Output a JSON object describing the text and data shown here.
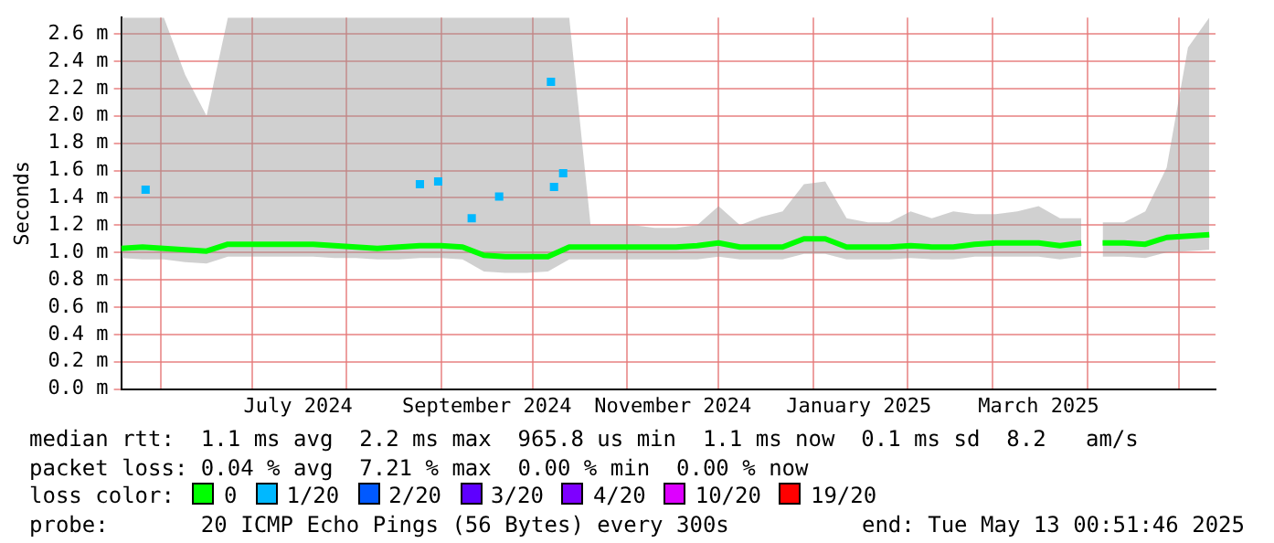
{
  "chart_data": {
    "type": "line",
    "ylabel": "Seconds",
    "legend_title": "loss color:",
    "legend": "bottom",
    "grid": true,
    "marker": "none",
    "line_style": "solid",
    "x": [
      "2024-05-19",
      "2024-05-26",
      "2024-06-02",
      "2024-06-09",
      "2024-06-16",
      "2024-06-23",
      "2024-06-30",
      "2024-07-07",
      "2024-07-14",
      "2024-07-21",
      "2024-07-28",
      "2024-08-04",
      "2024-08-11",
      "2024-08-18",
      "2024-08-25",
      "2024-09-01",
      "2024-09-08",
      "2024-09-15",
      "2024-09-22",
      "2024-09-29",
      "2024-10-06",
      "2024-10-13",
      "2024-10-20",
      "2024-10-27",
      "2024-11-03",
      "2024-11-10",
      "2024-11-17",
      "2024-11-24",
      "2024-12-01",
      "2024-12-08",
      "2024-12-15",
      "2024-12-22",
      "2024-12-29",
      "2025-01-05",
      "2025-01-12",
      "2025-01-19",
      "2025-01-26",
      "2025-02-02",
      "2025-02-09",
      "2025-02-16",
      "2025-02-23",
      "2025-03-02",
      "2025-03-09",
      "2025-03-16",
      "2025-03-23",
      "2025-03-30",
      "2025-04-03",
      "2025-04-06",
      "2025-04-13",
      "2025-04-20",
      "2025-04-27",
      "2025-05-04",
      "2025-05-11"
    ],
    "xlim": [
      "2024-05-19",
      "2025-05-13T00:51"
    ],
    "xticks": [
      {
        "value": "2024-06-01",
        "label": null
      },
      {
        "value": "2024-07-01",
        "label": null
      },
      {
        "value": "2024-07-16",
        "label": "July 2024"
      },
      {
        "value": "2024-08-01",
        "label": null
      },
      {
        "value": "2024-09-01",
        "label": null
      },
      {
        "value": "2024-09-16",
        "label": "September 2024"
      },
      {
        "value": "2024-10-01",
        "label": null
      },
      {
        "value": "2024-11-01",
        "label": null
      },
      {
        "value": "2024-11-16",
        "label": "November 2024"
      },
      {
        "value": "2024-12-01",
        "label": null
      },
      {
        "value": "2025-01-01",
        "label": null
      },
      {
        "value": "2025-01-16",
        "label": "January 2025"
      },
      {
        "value": "2025-02-01",
        "label": null
      },
      {
        "value": "2025-03-01",
        "label": null
      },
      {
        "value": "2025-03-16",
        "label": "March 2025"
      },
      {
        "value": "2025-04-01",
        "label": null
      },
      {
        "value": "2025-05-01",
        "label": null
      }
    ],
    "ylim": [
      0,
      2.72
    ],
    "yticks": [
      {
        "value": 0,
        "label": "0.0 m"
      },
      {
        "value": 0.2,
        "label": "0.2 m"
      },
      {
        "value": 0.4,
        "label": "0.4 m"
      },
      {
        "value": 0.6,
        "label": "0.6 m"
      },
      {
        "value": 0.8,
        "label": "0.8 m"
      },
      {
        "value": 1,
        "label": "1.0 m"
      },
      {
        "value": 1.2,
        "label": "1.2 m"
      },
      {
        "value": 1.4,
        "label": "1.4 m"
      },
      {
        "value": 1.6,
        "label": "1.6 m"
      },
      {
        "value": 1.8,
        "label": "1.8 m"
      },
      {
        "value": 2,
        "label": "2.0 m"
      },
      {
        "value": 2.2,
        "label": "2.2 m"
      },
      {
        "value": 2.4,
        "label": "2.4 m"
      },
      {
        "value": 2.6,
        "label": "2.6 m"
      }
    ],
    "series": [
      {
        "name": "0",
        "color": "#00ff00",
        "values": [
          1.03,
          1.04,
          1.03,
          1.02,
          1.01,
          1.06,
          1.06,
          1.06,
          1.06,
          1.06,
          1.05,
          1.04,
          1.03,
          1.04,
          1.05,
          1.05,
          1.04,
          0.98,
          0.97,
          0.97,
          0.97,
          1.04,
          1.04,
          1.04,
          1.04,
          1.04,
          1.04,
          1.05,
          1.07,
          1.04,
          1.04,
          1.04,
          1.1,
          1.1,
          1.04,
          1.04,
          1.04,
          1.05,
          1.04,
          1.04,
          1.06,
          1.07,
          1.07,
          1.07,
          1.05,
          1.07,
          null,
          1.07,
          1.07,
          1.06,
          1.11,
          1.12,
          1.13
        ],
        "lower": [
          0.96,
          0.95,
          0.95,
          0.93,
          0.92,
          0.97,
          0.97,
          0.97,
          0.97,
          0.97,
          0.96,
          0.96,
          0.95,
          0.95,
          0.96,
          0.96,
          0.95,
          0.86,
          0.85,
          0.85,
          0.86,
          0.95,
          0.95,
          0.95,
          0.95,
          0.95,
          0.95,
          0.95,
          0.97,
          0.95,
          0.95,
          0.95,
          0.99,
          0.99,
          0.95,
          0.95,
          0.95,
          0.96,
          0.95,
          0.95,
          0.97,
          0.97,
          0.97,
          0.97,
          0.95,
          0.97,
          null,
          0.97,
          0.97,
          0.96,
          1.0,
          1.01,
          1.02
        ],
        "upper": [
          2.72,
          2.72,
          2.72,
          2.3,
          2.0,
          2.72,
          2.72,
          2.72,
          2.72,
          2.72,
          2.72,
          2.72,
          2.72,
          2.72,
          2.72,
          2.72,
          2.72,
          2.72,
          2.72,
          2.72,
          2.72,
          2.72,
          1.2,
          1.2,
          1.2,
          1.18,
          1.18,
          1.2,
          1.34,
          1.2,
          1.26,
          1.3,
          1.5,
          1.52,
          1.25,
          1.22,
          1.22,
          1.3,
          1.25,
          1.3,
          1.28,
          1.28,
          1.3,
          1.34,
          1.25,
          1.25,
          null,
          1.22,
          1.22,
          1.3,
          1.62,
          2.5,
          2.72
        ]
      },
      {
        "name": "1/20",
        "color": "#00b8ff",
        "type": "scatter",
        "marker": "square",
        "x": [
          "2024-05-27",
          "2024-08-25",
          "2024-08-31",
          "2024-09-11",
          "2024-09-20",
          "2024-10-07",
          "2024-10-08",
          "2024-10-11"
        ],
        "values": [
          1.46,
          1.5,
          1.52,
          1.25,
          1.41,
          2.25,
          1.48,
          1.58
        ]
      },
      {
        "name": "2/20",
        "color": "#0059ff",
        "values": [
          null,
          null,
          null,
          null,
          null,
          null,
          null,
          null,
          null,
          null,
          null,
          null,
          null,
          null,
          null,
          null,
          null,
          null,
          null,
          null,
          null,
          null,
          null,
          null,
          null,
          null,
          null,
          null,
          null,
          null,
          null,
          null,
          null,
          null,
          null,
          null,
          null,
          null,
          null,
          null,
          null,
          null,
          null,
          null,
          null,
          null,
          null,
          null,
          null,
          null,
          null,
          null,
          null
        ]
      },
      {
        "name": "3/20",
        "color": "#5e00ff",
        "values": [
          null,
          null,
          null,
          null,
          null,
          null,
          null,
          null,
          null,
          null,
          null,
          null,
          null,
          null,
          null,
          null,
          null,
          null,
          null,
          null,
          null,
          null,
          null,
          null,
          null,
          null,
          null,
          null,
          null,
          null,
          null,
          null,
          null,
          null,
          null,
          null,
          null,
          null,
          null,
          null,
          null,
          null,
          null,
          null,
          null,
          null,
          null,
          null,
          null,
          null,
          null,
          null,
          null
        ]
      },
      {
        "name": "4/20",
        "color": "#7e00ff",
        "values": [
          null,
          null,
          null,
          null,
          null,
          null,
          null,
          null,
          null,
          null,
          null,
          null,
          null,
          null,
          null,
          null,
          null,
          null,
          null,
          null,
          null,
          null,
          null,
          null,
          null,
          null,
          null,
          null,
          null,
          null,
          null,
          null,
          null,
          null,
          null,
          null,
          null,
          null,
          null,
          null,
          null,
          null,
          null,
          null,
          null,
          null,
          null,
          null,
          null,
          null,
          null,
          null,
          null
        ]
      },
      {
        "name": "10/20",
        "color": "#dd00ff",
        "values": [
          null,
          null,
          null,
          null,
          null,
          null,
          null,
          null,
          null,
          null,
          null,
          null,
          null,
          null,
          null,
          null,
          null,
          null,
          null,
          null,
          null,
          null,
          null,
          null,
          null,
          null,
          null,
          null,
          null,
          null,
          null,
          null,
          null,
          null,
          null,
          null,
          null,
          null,
          null,
          null,
          null,
          null,
          null,
          null,
          null,
          null,
          null,
          null,
          null,
          null,
          null,
          null,
          null
        ]
      },
      {
        "name": "19/20",
        "color": "#ff0000",
        "values": [
          null,
          null,
          null,
          null,
          null,
          null,
          null,
          null,
          null,
          null,
          null,
          null,
          null,
          null,
          null,
          null,
          null,
          null,
          null,
          null,
          null,
          null,
          null,
          null,
          null,
          null,
          null,
          null,
          null,
          null,
          null,
          null,
          null,
          null,
          null,
          null,
          null,
          null,
          null,
          null,
          null,
          null,
          null,
          null,
          null,
          null,
          null,
          null,
          null,
          null,
          null,
          null,
          null
        ]
      }
    ],
    "annotations": [
      "median rtt:  1.1 ms avg  2.2 ms max  965.8 us min  1.1 ms now  0.1 ms sd  8.2   am/s",
      "packet loss: 0.04 % avg  7.21 % max  0.00 % min  0.00 % now",
      "probe:       20 ICMP Echo Pings (56 Bytes) every 300s",
      "end: Tue May 13 00:51:46 2025"
    ]
  }
}
